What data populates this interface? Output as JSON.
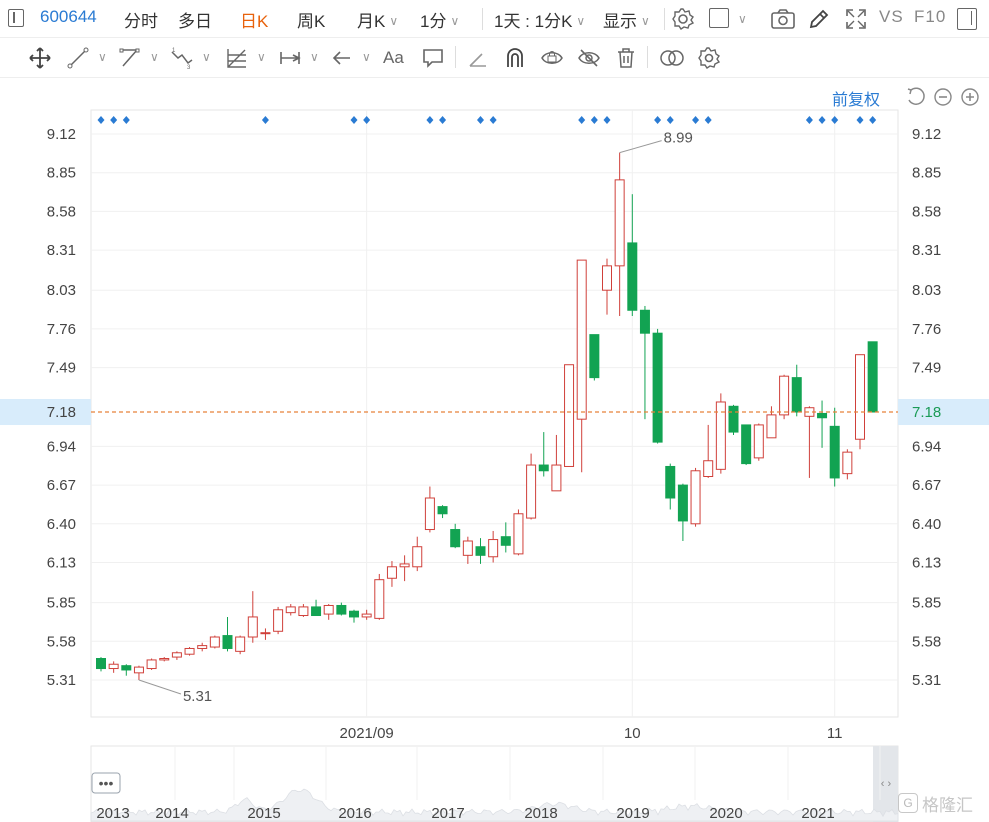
{
  "header": {
    "panel_label": "",
    "stock_code": "600644",
    "tabs": [
      {
        "label": "分时",
        "active": false
      },
      {
        "label": "多日",
        "active": false
      },
      {
        "label": "日K",
        "active": true
      },
      {
        "label": "周K",
        "active": false
      },
      {
        "label": "月K",
        "active": false
      },
      {
        "label": "1分",
        "active": false
      }
    ],
    "multi_period": "1天 : 1分K",
    "display": "显示",
    "vs": "VS",
    "f10": "F10"
  },
  "toolbar": {
    "tools": [
      "move-icon",
      "line-icon",
      "polyline-icon",
      "wave-icon",
      "fib-icon",
      "range-icon",
      "arrow-icon",
      "text-icon",
      "comment-icon",
      "angle-icon",
      "magnet-icon",
      "eye-lock-icon",
      "hide-icon",
      "trash-icon",
      "compare-icon",
      "settings-icon"
    ],
    "text_tool_label": "Aa"
  },
  "adjust_label": "前复权",
  "colors": {
    "up": "#d0403a",
    "down": "#12a352",
    "accent": "#2a7bd3",
    "current_line": "#e8823a",
    "current_bg": "#d8ecfb"
  },
  "chart_data": {
    "type": "candlestick",
    "ylim": [
      5.1,
      9.25
    ],
    "ticks": [
      9.12,
      8.85,
      8.58,
      8.31,
      8.03,
      7.76,
      7.49,
      6.94,
      6.67,
      6.4,
      6.13,
      5.85,
      5.58,
      5.31
    ],
    "current_price": 7.18,
    "x_labels": [
      {
        "label": "2021/09",
        "index": 21
      },
      {
        "label": "10",
        "index": 42
      },
      {
        "label": "11",
        "index": 58
      }
    ],
    "max_annotation": {
      "label": "8.99",
      "index": 41
    },
    "min_annotation": {
      "label": "5.31",
      "index": 3
    },
    "marker_indices": [
      0,
      1,
      2,
      13,
      20,
      21,
      26,
      27,
      30,
      31,
      38,
      39,
      40,
      44,
      45,
      47,
      48,
      56,
      57,
      58,
      60,
      61
    ],
    "candles": [
      {
        "o": 5.46,
        "h": 5.47,
        "l": 5.37,
        "c": 5.39
      },
      {
        "o": 5.39,
        "h": 5.44,
        "l": 5.36,
        "c": 5.42
      },
      {
        "o": 5.41,
        "h": 5.42,
        "l": 5.34,
        "c": 5.38
      },
      {
        "o": 5.36,
        "h": 5.41,
        "l": 5.31,
        "c": 5.4
      },
      {
        "o": 5.39,
        "h": 5.46,
        "l": 5.38,
        "c": 5.45
      },
      {
        "o": 5.45,
        "h": 5.47,
        "l": 5.44,
        "c": 5.46
      },
      {
        "o": 5.47,
        "h": 5.51,
        "l": 5.45,
        "c": 5.5
      },
      {
        "o": 5.49,
        "h": 5.54,
        "l": 5.48,
        "c": 5.53
      },
      {
        "o": 5.53,
        "h": 5.57,
        "l": 5.51,
        "c": 5.55
      },
      {
        "o": 5.54,
        "h": 5.62,
        "l": 5.53,
        "c": 5.61
      },
      {
        "o": 5.62,
        "h": 5.75,
        "l": 5.51,
        "c": 5.53
      },
      {
        "o": 5.51,
        "h": 5.62,
        "l": 5.49,
        "c": 5.61
      },
      {
        "o": 5.61,
        "h": 5.93,
        "l": 5.57,
        "c": 5.75
      },
      {
        "o": 5.64,
        "h": 5.67,
        "l": 5.59,
        "c": 5.64
      },
      {
        "o": 5.65,
        "h": 5.82,
        "l": 5.63,
        "c": 5.8
      },
      {
        "o": 5.78,
        "h": 5.84,
        "l": 5.76,
        "c": 5.82
      },
      {
        "o": 5.76,
        "h": 5.84,
        "l": 5.75,
        "c": 5.82
      },
      {
        "o": 5.82,
        "h": 5.87,
        "l": 5.77,
        "c": 5.76
      },
      {
        "o": 5.77,
        "h": 5.84,
        "l": 5.73,
        "c": 5.83
      },
      {
        "o": 5.83,
        "h": 5.85,
        "l": 5.76,
        "c": 5.77
      },
      {
        "o": 5.79,
        "h": 5.8,
        "l": 5.71,
        "c": 5.75
      },
      {
        "o": 5.75,
        "h": 5.8,
        "l": 5.73,
        "c": 5.77
      },
      {
        "o": 5.74,
        "h": 6.05,
        "l": 5.73,
        "c": 6.01
      },
      {
        "o": 6.02,
        "h": 6.14,
        "l": 5.96,
        "c": 6.1
      },
      {
        "o": 6.1,
        "h": 6.18,
        "l": 6.0,
        "c": 6.12
      },
      {
        "o": 6.1,
        "h": 6.31,
        "l": 6.07,
        "c": 6.24
      },
      {
        "o": 6.36,
        "h": 6.66,
        "l": 6.34,
        "c": 6.58
      },
      {
        "o": 6.52,
        "h": 6.53,
        "l": 6.44,
        "c": 6.47
      },
      {
        "o": 6.36,
        "h": 6.4,
        "l": 6.23,
        "c": 6.24
      },
      {
        "o": 6.18,
        "h": 6.31,
        "l": 6.12,
        "c": 6.28
      },
      {
        "o": 6.24,
        "h": 6.3,
        "l": 6.12,
        "c": 6.18
      },
      {
        "o": 6.17,
        "h": 6.35,
        "l": 6.13,
        "c": 6.29
      },
      {
        "o": 6.31,
        "h": 6.41,
        "l": 6.2,
        "c": 6.25
      },
      {
        "o": 6.19,
        "h": 6.5,
        "l": 6.18,
        "c": 6.47
      },
      {
        "o": 6.44,
        "h": 6.89,
        "l": 6.43,
        "c": 6.81
      },
      {
        "o": 6.81,
        "h": 7.04,
        "l": 6.73,
        "c": 6.77
      },
      {
        "o": 6.63,
        "h": 7.02,
        "l": 6.63,
        "c": 6.81
      },
      {
        "o": 6.8,
        "h": 7.51,
        "l": 6.8,
        "c": 7.51
      },
      {
        "o": 7.13,
        "h": 8.24,
        "l": 6.76,
        "c": 8.24
      },
      {
        "o": 7.72,
        "h": 7.72,
        "l": 7.4,
        "c": 7.42
      },
      {
        "o": 8.03,
        "h": 8.25,
        "l": 7.86,
        "c": 8.2
      },
      {
        "o": 8.2,
        "h": 8.99,
        "l": 7.85,
        "c": 8.8
      },
      {
        "o": 8.36,
        "h": 8.7,
        "l": 7.85,
        "c": 7.89
      },
      {
        "o": 7.89,
        "h": 7.92,
        "l": 7.13,
        "c": 7.73
      },
      {
        "o": 7.73,
        "h": 7.76,
        "l": 6.96,
        "c": 6.97
      },
      {
        "o": 6.8,
        "h": 6.82,
        "l": 6.5,
        "c": 6.58
      },
      {
        "o": 6.67,
        "h": 6.68,
        "l": 6.28,
        "c": 6.42
      },
      {
        "o": 6.4,
        "h": 6.79,
        "l": 6.38,
        "c": 6.77
      },
      {
        "o": 6.73,
        "h": 7.09,
        "l": 6.72,
        "c": 6.84
      },
      {
        "o": 6.78,
        "h": 7.31,
        "l": 6.75,
        "c": 7.25
      },
      {
        "o": 7.22,
        "h": 7.23,
        "l": 7.02,
        "c": 7.04
      },
      {
        "o": 7.09,
        "h": 7.09,
        "l": 6.81,
        "c": 6.82
      },
      {
        "o": 6.86,
        "h": 7.1,
        "l": 6.84,
        "c": 7.09
      },
      {
        "o": 7.0,
        "h": 7.22,
        "l": 7.0,
        "c": 7.16
      },
      {
        "o": 7.16,
        "h": 7.44,
        "l": 7.13,
        "c": 7.43
      },
      {
        "o": 7.42,
        "h": 7.51,
        "l": 7.15,
        "c": 7.18
      },
      {
        "o": 7.15,
        "h": 7.22,
        "l": 6.72,
        "c": 7.21
      },
      {
        "o": 7.17,
        "h": 7.26,
        "l": 6.93,
        "c": 7.14
      },
      {
        "o": 7.08,
        "h": 7.21,
        "l": 6.66,
        "c": 6.72
      },
      {
        "o": 6.75,
        "h": 6.92,
        "l": 6.71,
        "c": 6.9
      },
      {
        "o": 6.99,
        "h": 7.58,
        "l": 6.92,
        "c": 7.58
      },
      {
        "o": 7.67,
        "h": 7.67,
        "l": 7.18,
        "c": 7.18
      }
    ],
    "navigator": {
      "years": [
        "2013",
        "2014",
        "2015",
        "2016",
        "2017",
        "2018",
        "2019",
        "2020",
        "2021"
      ],
      "handle_label": "•••",
      "arrows": "‹ ›"
    }
  },
  "watermark": "格隆汇"
}
